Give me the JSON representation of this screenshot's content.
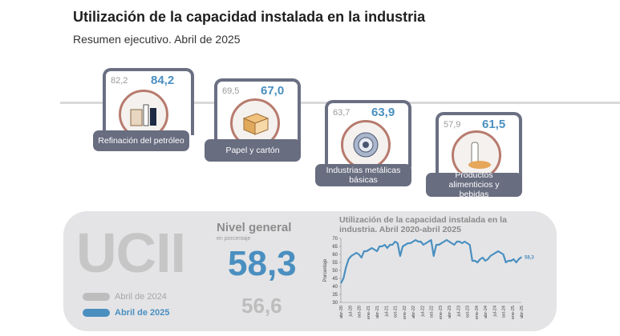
{
  "header": {
    "title": "Utilización de la capacidad instalada en la industria",
    "subtitle": "Resumen ejecutivo. Abril de 2025"
  },
  "colors": {
    "current": "#4a8fc0",
    "previous": "#bdbdbd",
    "frame": "#6a6f82"
  },
  "sectors": [
    {
      "label": "Refinación del petróleo",
      "previous": "82,2",
      "current": "84,2",
      "icon": "oil-refinery-icon"
    },
    {
      "label": "Papel y cartón",
      "previous": "69,5",
      "current": "67,0",
      "icon": "cardboard-box-icon"
    },
    {
      "label": "Industrias metálicas básicas",
      "previous": "63,7",
      "current": "63,9",
      "icon": "metal-coil-icon"
    },
    {
      "label": "Productos alimenticios y bebidas",
      "previous": "57,9",
      "current": "61,5",
      "icon": "food-beverage-icon"
    }
  ],
  "summary": {
    "acronym": "UCII",
    "legend_prev": "Abril de 2024",
    "legend_cur": "Abril de 2025",
    "level_title": "Nivel general",
    "level_unit": "en porcentaje",
    "value_cur": "58,3",
    "value_prev": "56,6"
  },
  "chart_data": {
    "type": "line",
    "title": "Utilización de la capacidad instalada en la industria. Abril 2020-abril 2025",
    "ylabel": "Porcentaje",
    "ylim": [
      30,
      70
    ],
    "yticks": [
      30,
      35,
      40,
      45,
      50,
      55,
      60,
      65,
      70
    ],
    "xticks": [
      "abr-20",
      "jul-20",
      "oct-20",
      "ene-21",
      "abr-21",
      "jul-21",
      "oct-21",
      "ene-22",
      "abr-22",
      "jul-22",
      "oct-22",
      "ene-23",
      "abr-23",
      "jul-23",
      "oct-23",
      "ene-24",
      "abr-24",
      "jul-24",
      "oct-24",
      "ene-25",
      "abr-25"
    ],
    "end_label": "58,3",
    "series": [
      {
        "values": [
          42,
          45,
          52,
          57,
          59,
          60,
          61,
          60,
          58,
          62,
          62,
          63,
          64,
          63,
          62,
          65,
          65,
          66,
          64,
          66,
          66,
          68,
          67,
          59,
          65,
          66,
          67,
          67,
          68,
          69,
          68,
          68,
          66,
          67,
          68,
          69,
          59,
          66,
          66,
          67,
          68,
          69,
          68,
          67,
          66,
          68,
          68,
          67,
          68,
          67,
          66,
          56,
          56,
          55,
          57,
          58,
          56,
          57,
          59,
          60,
          61,
          62,
          61,
          60,
          55,
          56,
          56,
          57,
          55,
          57,
          58.3
        ]
      }
    ]
  }
}
